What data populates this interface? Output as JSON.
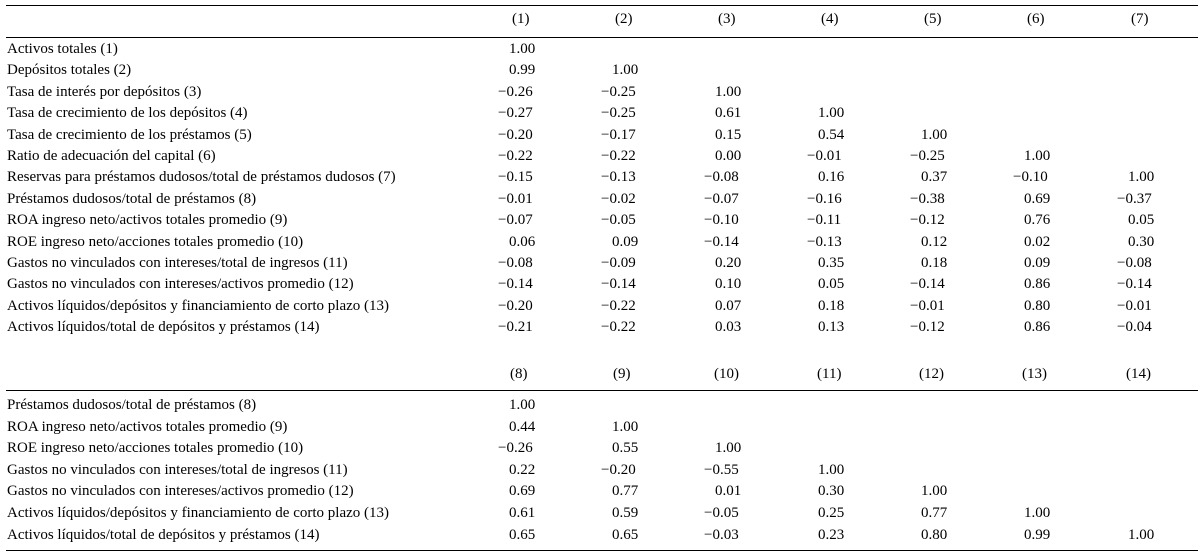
{
  "panels": [
    {
      "columns": [
        "(1)",
        "(2)",
        "(3)",
        "(4)",
        "(5)",
        "(6)",
        "(7)"
      ],
      "rows": [
        {
          "label": "Activos totales (1)",
          "values": [
            "1.00",
            "",
            "",
            "",
            "",
            "",
            ""
          ]
        },
        {
          "label": "Depósitos totales (2)",
          "values": [
            "0.99",
            "1.00",
            "",
            "",
            "",
            "",
            ""
          ]
        },
        {
          "label": "Tasa de interés por depósitos (3)",
          "values": [
            "−0.26",
            "−0.25",
            "1.00",
            "",
            "",
            "",
            ""
          ]
        },
        {
          "label": "Tasa de crecimiento de los depósitos (4)",
          "values": [
            "−0.27",
            "−0.25",
            "0.61",
            "1.00",
            "",
            "",
            ""
          ]
        },
        {
          "label": "Tasa de crecimiento de los préstamos (5)",
          "values": [
            "−0.20",
            "−0.17",
            "0.15",
            "0.54",
            "1.00",
            "",
            ""
          ]
        },
        {
          "label": "Ratio de adecuación del capital (6)",
          "values": [
            "−0.22",
            "−0.22",
            "0.00",
            "−0.01",
            "−0.25",
            "1.00",
            ""
          ]
        },
        {
          "label": "Reservas para préstamos dudosos/total de préstamos dudosos (7)",
          "values": [
            "−0.15",
            "−0.13",
            "−0.08",
            "0.16",
            "0.37",
            "−0.10",
            "1.00"
          ]
        },
        {
          "label": "Préstamos dudosos/total de préstamos (8)",
          "values": [
            "−0.01",
            "−0.02",
            "−0.07",
            "−0.16",
            "−0.38",
            "0.69",
            "−0.37"
          ]
        },
        {
          "label": "ROA ingreso neto/activos totales promedio (9)",
          "values": [
            "−0.07",
            "−0.05",
            "−0.10",
            "−0.11",
            "−0.12",
            "0.76",
            "0.05"
          ]
        },
        {
          "label": "ROE ingreso neto/acciones totales promedio (10)",
          "values": [
            "0.06",
            "0.09",
            "−0.14",
            "−0.13",
            "0.12",
            "0.02",
            "0.30"
          ]
        },
        {
          "label": "Gastos no vinculados con intereses/total de ingresos (11)",
          "values": [
            "−0.08",
            "−0.09",
            "0.20",
            "0.35",
            "0.18",
            "0.09",
            "−0.08"
          ]
        },
        {
          "label": "Gastos no vinculados con intereses/activos promedio (12)",
          "values": [
            "−0.14",
            "−0.14",
            "0.10",
            "0.05",
            "−0.14",
            "0.86",
            "−0.14"
          ]
        },
        {
          "label": "Activos líquidos/depósitos y financiamiento de corto plazo (13)",
          "values": [
            "−0.20",
            "−0.22",
            "0.07",
            "0.18",
            "−0.01",
            "0.80",
            "−0.01"
          ]
        },
        {
          "label": "Activos líquidos/total de depósitos y préstamos (14)",
          "values": [
            "−0.21",
            "−0.22",
            "0.03",
            "0.13",
            "−0.12",
            "0.86",
            "−0.04"
          ]
        }
      ]
    },
    {
      "columns": [
        "(8)",
        "(9)",
        "(10)",
        "(11)",
        "(12)",
        "(13)",
        "(14)"
      ],
      "rows": [
        {
          "label": "Préstamos dudosos/total de préstamos (8)",
          "values": [
            "1.00",
            "",
            "",
            "",
            "",
            "",
            ""
          ]
        },
        {
          "label": "ROA ingreso neto/activos totales promedio (9)",
          "values": [
            "0.44",
            "1.00",
            "",
            "",
            "",
            "",
            ""
          ]
        },
        {
          "label": "ROE ingreso neto/acciones totales promedio (10)",
          "values": [
            "−0.26",
            "0.55",
            "1.00",
            "",
            "",
            "",
            ""
          ]
        },
        {
          "label": "Gastos no vinculados con intereses/total de ingresos (11)",
          "values": [
            "0.22",
            "−0.20",
            "−0.55",
            "1.00",
            "",
            "",
            ""
          ]
        },
        {
          "label": "Gastos no vinculados con intereses/activos promedio (12)",
          "values": [
            "0.69",
            "0.77",
            "0.01",
            "0.30",
            "1.00",
            "",
            ""
          ]
        },
        {
          "label": "Activos líquidos/depósitos y financiamiento de corto plazo (13)",
          "values": [
            "0.61",
            "0.59",
            "−0.05",
            "0.25",
            "0.77",
            "1.00",
            ""
          ]
        },
        {
          "label": "Activos líquidos/total de depósitos y préstamos (14)",
          "values": [
            "0.65",
            "0.65",
            "−0.03",
            "0.23",
            "0.80",
            "0.99",
            "1.00"
          ]
        }
      ]
    }
  ]
}
